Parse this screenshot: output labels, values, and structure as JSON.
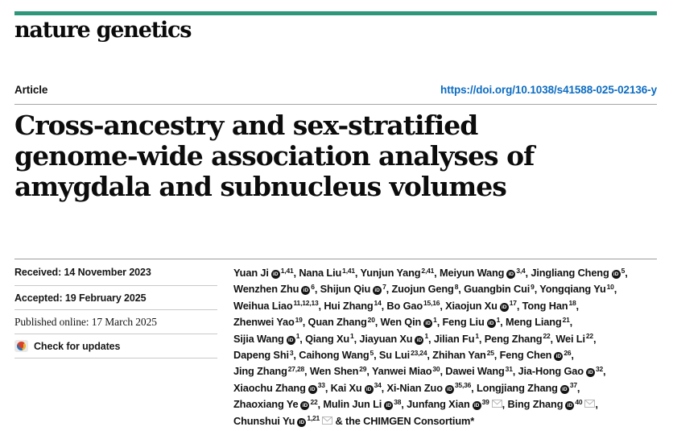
{
  "brand": {
    "journal": "nature genetics",
    "accent_color": "#2f9779"
  },
  "header": {
    "article_label": "Article",
    "doi": "https://doi.org/10.1038/s41588-025-02136-y",
    "doi_color": "#0c6cc2"
  },
  "article": {
    "title": "Cross-ancestry and sex-stratified genome-wide association analyses of amygdala and subnucleus volumes",
    "title_lines": [
      "Cross-ancestry and sex-stratified",
      "genome-wide association analyses of",
      "amygdala and subnucleus volumes"
    ]
  },
  "sidebar": {
    "received": "Received: 14 November 2023",
    "accepted": "Accepted: 19 February 2025",
    "published": "Published online: 17 March 2025",
    "check_for_updates": "Check for updates"
  },
  "authors": {
    "orcid_icon_label": "iD",
    "suffix": "& the CHIMGEN Consortium*",
    "lines": [
      [
        {
          "name": "Yuan Ji",
          "orcid": true,
          "sup": "1,41"
        },
        {
          "name": "Nana Liu",
          "orcid": false,
          "sup": "1,41"
        },
        {
          "name": "Yunjun Yang",
          "orcid": false,
          "sup": "2,41"
        },
        {
          "name": "Meiyun Wang",
          "orcid": true,
          "sup": "3,4"
        },
        {
          "name": "Jingliang Cheng",
          "orcid": true,
          "sup": "5"
        }
      ],
      [
        {
          "name": "Wenzhen Zhu",
          "orcid": true,
          "sup": "6"
        },
        {
          "name": "Shijun Qiu",
          "orcid": true,
          "sup": "7"
        },
        {
          "name": "Zuojun Geng",
          "orcid": false,
          "sup": "8"
        },
        {
          "name": "Guangbin Cui",
          "orcid": false,
          "sup": "9"
        },
        {
          "name": "Yongqiang Yu",
          "orcid": false,
          "sup": "10"
        }
      ],
      [
        {
          "name": "Weihua Liao",
          "orcid": false,
          "sup": "11,12,13"
        },
        {
          "name": "Hui Zhang",
          "orcid": false,
          "sup": "14"
        },
        {
          "name": "Bo Gao",
          "orcid": false,
          "sup": "15,16"
        },
        {
          "name": "Xiaojun Xu",
          "orcid": true,
          "sup": "17"
        },
        {
          "name": "Tong Han",
          "orcid": false,
          "sup": "18"
        }
      ],
      [
        {
          "name": "Zhenwei Yao",
          "orcid": false,
          "sup": "19"
        },
        {
          "name": "Quan Zhang",
          "orcid": false,
          "sup": "20"
        },
        {
          "name": "Wen Qin",
          "orcid": true,
          "sup": "1"
        },
        {
          "name": "Feng Liu",
          "orcid": true,
          "sup": "1"
        },
        {
          "name": "Meng Liang",
          "orcid": false,
          "sup": "21"
        }
      ],
      [
        {
          "name": "Sijia Wang",
          "orcid": true,
          "sup": "1"
        },
        {
          "name": "Qiang Xu",
          "orcid": false,
          "sup": "1"
        },
        {
          "name": "Jiayuan Xu",
          "orcid": true,
          "sup": "1"
        },
        {
          "name": "Jilian Fu",
          "orcid": false,
          "sup": "1"
        },
        {
          "name": "Peng Zhang",
          "orcid": false,
          "sup": "22"
        },
        {
          "name": "Wei Li",
          "orcid": false,
          "sup": "22"
        }
      ],
      [
        {
          "name": "Dapeng Shi",
          "orcid": false,
          "sup": "3"
        },
        {
          "name": "Caihong Wang",
          "orcid": false,
          "sup": "5"
        },
        {
          "name": "Su Lui",
          "orcid": false,
          "sup": "23,24"
        },
        {
          "name": "Zhihan Yan",
          "orcid": false,
          "sup": "25"
        },
        {
          "name": "Feng Chen",
          "orcid": true,
          "sup": "26"
        }
      ],
      [
        {
          "name": "Jing Zhang",
          "orcid": false,
          "sup": "27,28"
        },
        {
          "name": "Wen Shen",
          "orcid": false,
          "sup": "29"
        },
        {
          "name": "Yanwei Miao",
          "orcid": false,
          "sup": "30"
        },
        {
          "name": "Dawei Wang",
          "orcid": false,
          "sup": "31"
        },
        {
          "name": "Jia-Hong Gao",
          "orcid": true,
          "sup": "32"
        }
      ],
      [
        {
          "name": "Xiaochu Zhang",
          "orcid": true,
          "sup": "33"
        },
        {
          "name": "Kai Xu",
          "orcid": true,
          "sup": "34"
        },
        {
          "name": "Xi-Nian Zuo",
          "orcid": true,
          "sup": "35,36"
        },
        {
          "name": "Longjiang Zhang",
          "orcid": true,
          "sup": "37"
        }
      ],
      [
        {
          "name": "Zhaoxiang Ye",
          "orcid": true,
          "sup": "22"
        },
        {
          "name": "Mulin Jun Li",
          "orcid": true,
          "sup": "38"
        },
        {
          "name": "Junfang Xian",
          "orcid": true,
          "sup": "39",
          "email": true
        },
        {
          "name": "Bing Zhang",
          "orcid": true,
          "sup": "40",
          "email": true
        }
      ],
      [
        {
          "name": "Chunshui Yu",
          "orcid": true,
          "sup": "1,21",
          "email": true
        }
      ]
    ]
  }
}
